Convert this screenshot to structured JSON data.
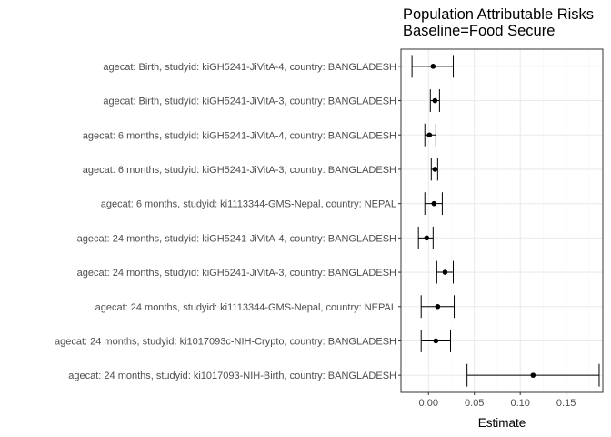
{
  "chart_data": {
    "type": "forest",
    "title_lines": [
      "Population Attributable Risks",
      "Baseline=Food Secure"
    ],
    "xlabel": "Estimate",
    "ylabel": "",
    "xlim": [
      -0.03,
      0.19
    ],
    "xticks": [
      0.0,
      0.05,
      0.1,
      0.15
    ],
    "xtick_labels": [
      "0.00",
      "0.05",
      "0.10",
      "0.15"
    ],
    "grid": true,
    "colors": {
      "point": "#000000",
      "grid_major": "#ebebeb",
      "grid_minor": "#f5f5f5",
      "panel_border": "#333333"
    },
    "rows": [
      {
        "label": "agecat: Birth, studyid: kiGH5241-JiVitA-4, country: BANGLADESH",
        "estimate": 0.005,
        "lower": -0.018,
        "upper": 0.027
      },
      {
        "label": "agecat: Birth, studyid: kiGH5241-JiVitA-3, country: BANGLADESH",
        "estimate": 0.007,
        "lower": 0.002,
        "upper": 0.012
      },
      {
        "label": "agecat: 6 months, studyid: kiGH5241-JiVitA-4, country: BANGLADESH",
        "estimate": 0.001,
        "lower": -0.004,
        "upper": 0.008
      },
      {
        "label": "agecat: 6 months, studyid: kiGH5241-JiVitA-3, country: BANGLADESH",
        "estimate": 0.007,
        "lower": 0.003,
        "upper": 0.01
      },
      {
        "label": "agecat: 6 months, studyid: ki1113344-GMS-Nepal, country: NEPAL",
        "estimate": 0.006,
        "lower": -0.004,
        "upper": 0.015
      },
      {
        "label": "agecat: 24 months, studyid: kiGH5241-JiVitA-4, country: BANGLADESH",
        "estimate": -0.002,
        "lower": -0.011,
        "upper": 0.005
      },
      {
        "label": "agecat: 24 months, studyid: kiGH5241-JiVitA-3, country: BANGLADESH",
        "estimate": 0.018,
        "lower": 0.009,
        "upper": 0.027
      },
      {
        "label": "agecat: 24 months, studyid: ki1113344-GMS-Nepal, country: NEPAL",
        "estimate": 0.01,
        "lower": -0.008,
        "upper": 0.028
      },
      {
        "label": "agecat: 24 months, studyid: ki1017093c-NIH-Crypto, country: BANGLADESH",
        "estimate": 0.008,
        "lower": -0.008,
        "upper": 0.024
      },
      {
        "label": "agecat: 24 months, studyid: ki1017093-NIH-Birth, country: BANGLADESH",
        "estimate": 0.114,
        "lower": 0.042,
        "upper": 0.186
      }
    ]
  }
}
